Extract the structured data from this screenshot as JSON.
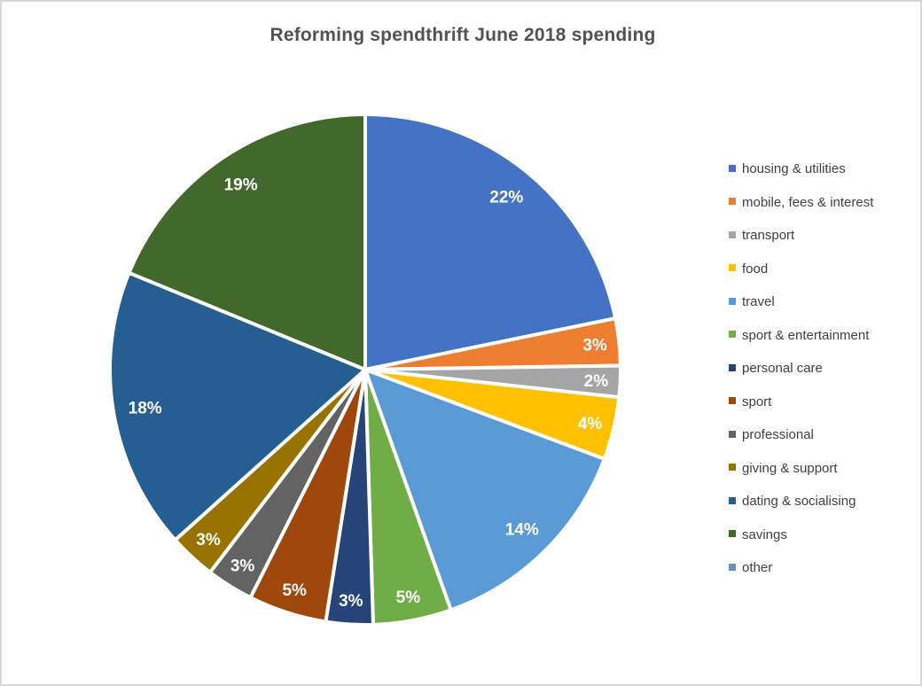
{
  "frame": {
    "background": "#ffffff",
    "border_color": "#d6d6d6"
  },
  "chart_data": {
    "type": "pie",
    "title": "Reforming spendthrift June 2018 spending",
    "legend_position": "right",
    "start_angle_deg": 0,
    "direction": "clockwise",
    "grid": "off",
    "categories": [
      "housing & utilities",
      "mobile, fees & interest",
      "transport",
      "food",
      "travel",
      "sport & entertainment",
      "personal care",
      "sport",
      "professional",
      "giving & support",
      "dating & socialising",
      "savings",
      "other"
    ],
    "values": [
      22,
      3,
      2,
      4,
      14,
      5,
      3,
      5,
      3,
      3,
      18,
      19,
      0
    ],
    "slice_labels": [
      "22%",
      "3%",
      "2%",
      "4%",
      "14%",
      "5%",
      "3%",
      "5%",
      "3%",
      "3%",
      "18%",
      "19%",
      ""
    ],
    "colors": [
      "#4472C4",
      "#ED7D31",
      "#A5A5A5",
      "#FFC000",
      "#5B9BD5",
      "#70AD47",
      "#264478",
      "#9E480E",
      "#636363",
      "#997300",
      "#255E91",
      "#43682B",
      "#698ED0"
    ],
    "styles": {
      "title_color": "#525252",
      "data_label_color": "#ffffff",
      "legend_text_color": "#404040",
      "separator_color": "#ffffff"
    }
  }
}
